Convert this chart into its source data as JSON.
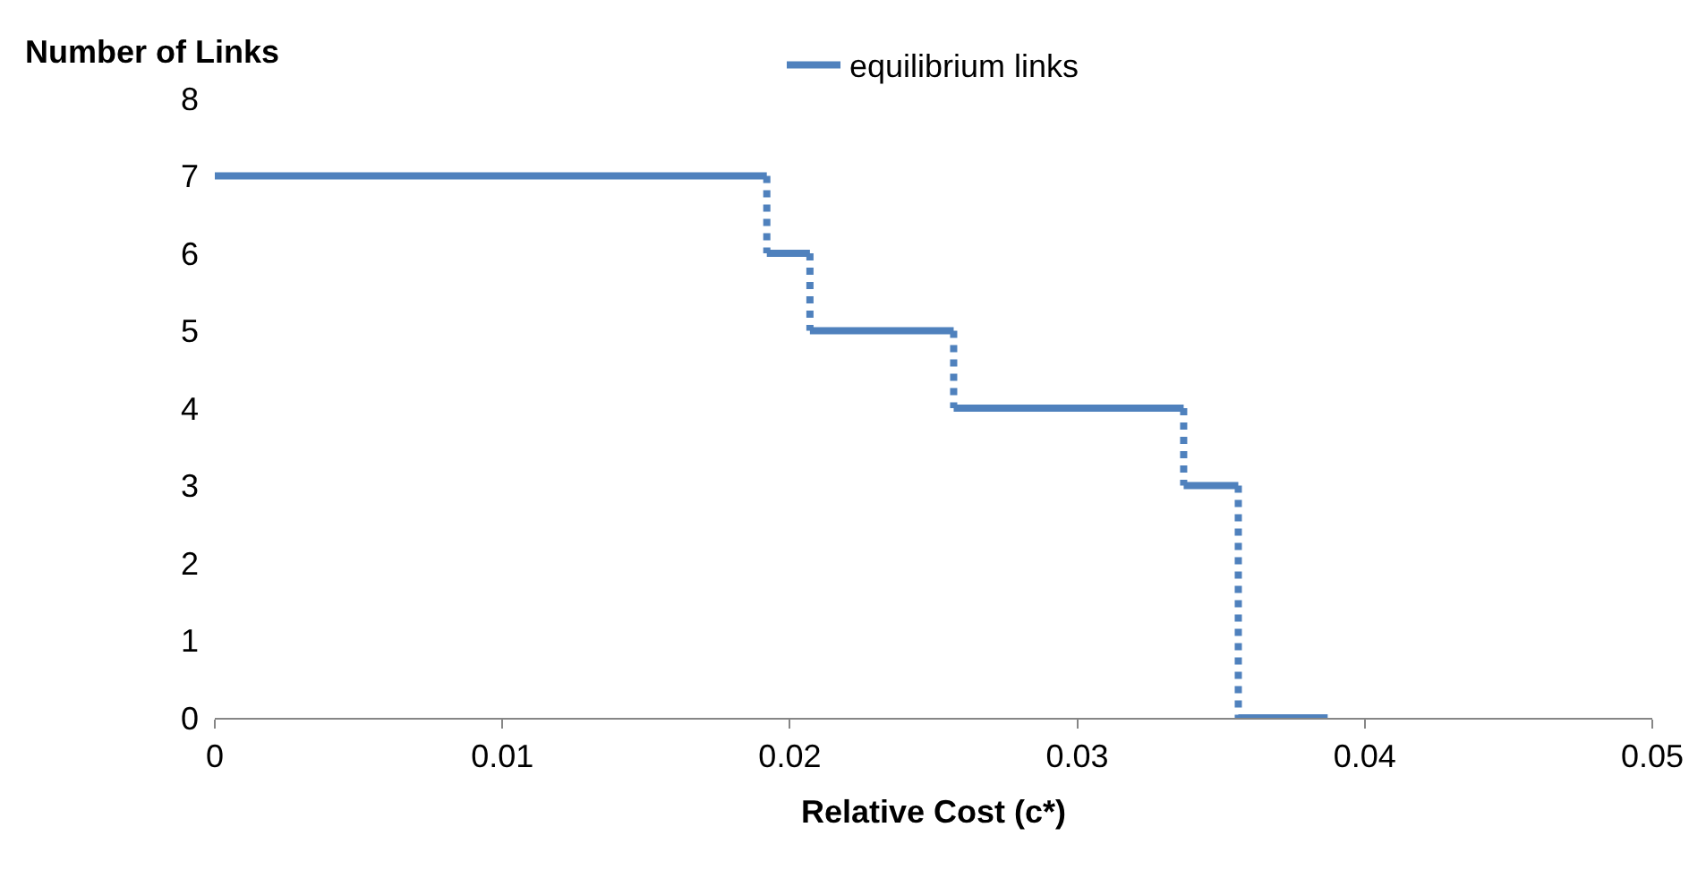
{
  "chart_data": {
    "type": "step",
    "xlabel": "Relative Cost (c*)",
    "ylabel": "Number of Links",
    "x": [
      0,
      0.0192,
      0.0207,
      0.0257,
      0.0337,
      0.0356,
      0.0387
    ],
    "series": [
      {
        "name": "equilibrium links",
        "color": "#4f81bd",
        "values": [
          7,
          6,
          5,
          4,
          3,
          0,
          0
        ]
      }
    ],
    "xlim": [
      0,
      0.05
    ],
    "xticks": [
      0,
      0.01,
      0.02,
      0.03,
      0.04,
      0.05
    ],
    "ylim": [
      0,
      8
    ],
    "yticks": [
      0,
      1,
      2,
      3,
      4,
      5,
      6,
      7,
      8
    ],
    "legend": "top",
    "line_style": "solid"
  }
}
